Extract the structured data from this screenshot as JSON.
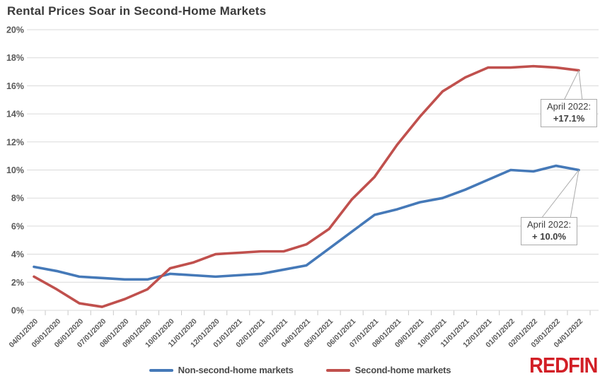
{
  "title": "Rental Prices Soar in Second-Home Markets",
  "brand": "REDFIN",
  "chart_data": {
    "type": "line",
    "categories": [
      "04/01/2020",
      "05/01/2020",
      "06/01/2020",
      "07/01/2020",
      "08/01/2020",
      "09/01/2020",
      "10/01/2020",
      "11/01/2020",
      "12/01/2020",
      "01/01/2021",
      "02/01/2021",
      "03/01/2021",
      "04/01/2021",
      "05/01/2021",
      "06/01/2021",
      "07/01/2021",
      "08/01/2021",
      "09/01/2021",
      "10/01/2021",
      "11/01/2021",
      "12/01/2021",
      "01/01/2022",
      "02/01/2022",
      "03/01/2022",
      "04/01/2022"
    ],
    "series": [
      {
        "name": "Non-second-home markets",
        "color": "#4579B8",
        "values": [
          3.1,
          2.8,
          2.4,
          2.3,
          2.2,
          2.2,
          2.6,
          2.5,
          2.4,
          2.5,
          2.6,
          2.9,
          3.2,
          4.4,
          5.6,
          6.8,
          7.2,
          7.7,
          8.0,
          8.6,
          9.3,
          10.0,
          9.9,
          10.3,
          10.0
        ]
      },
      {
        "name": "Second-home markets",
        "color": "#C0504D",
        "values": [
          2.4,
          1.5,
          0.5,
          0.25,
          0.8,
          1.5,
          3.0,
          3.4,
          4.0,
          4.1,
          4.2,
          4.2,
          4.7,
          5.8,
          7.9,
          9.5,
          11.8,
          13.8,
          15.6,
          16.6,
          17.3,
          17.3,
          17.4,
          17.3,
          17.1
        ]
      }
    ],
    "ylim": [
      0,
      20
    ],
    "y_tick_step": 2,
    "y_tick_suffix": "%",
    "grid": true,
    "legend_position": "bottom",
    "annotations": [
      {
        "series": "Second-home markets",
        "category": "04/01/2022",
        "line1": "April 2022:",
        "line2": "+17.1%"
      },
      {
        "series": "Non-second-home markets",
        "category": "04/01/2022",
        "line1": "April 2022:",
        "line2": "+ 10.0%"
      }
    ],
    "colors": {
      "grid": "#dadada",
      "tick": "#c8c8c8",
      "axis_text": "#595959",
      "title_text": "#3b3b3b",
      "callout_border": "#ababab",
      "brand_red": "#d21f26"
    }
  }
}
